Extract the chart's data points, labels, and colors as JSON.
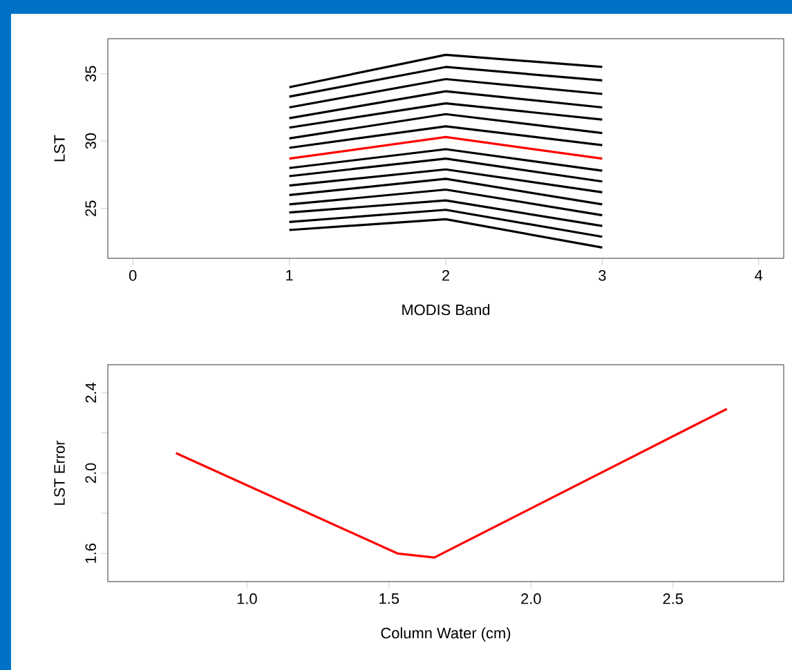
{
  "chart_data": [
    {
      "type": "line",
      "xlabel": "MODIS Band",
      "ylabel": "LST",
      "x": [
        1,
        2,
        3
      ],
      "xlim": [
        -0.16,
        4.16
      ],
      "ylim": [
        21.3,
        37.6
      ],
      "xticks": [
        0,
        1,
        2,
        3,
        4
      ],
      "yticks": [
        25,
        30,
        35
      ],
      "marker": "none",
      "line_style": "solid",
      "series": [
        {
          "color": "#000000",
          "values": [
            34.0,
            36.4,
            35.5
          ]
        },
        {
          "color": "#000000",
          "values": [
            33.3,
            35.5,
            34.5
          ]
        },
        {
          "color": "#000000",
          "values": [
            32.5,
            34.6,
            33.5
          ]
        },
        {
          "color": "#000000",
          "values": [
            31.7,
            33.7,
            32.5
          ]
        },
        {
          "color": "#000000",
          "values": [
            31.0,
            32.8,
            31.6
          ]
        },
        {
          "color": "#000000",
          "values": [
            30.2,
            32.0,
            30.6
          ]
        },
        {
          "color": "#000000",
          "values": [
            29.5,
            31.1,
            29.7
          ]
        },
        {
          "color": "#ff0000",
          "values": [
            28.7,
            30.3,
            28.7
          ]
        },
        {
          "color": "#000000",
          "values": [
            28.0,
            29.4,
            27.8
          ]
        },
        {
          "color": "#000000",
          "values": [
            27.4,
            28.7,
            27.0
          ]
        },
        {
          "color": "#000000",
          "values": [
            26.7,
            27.9,
            26.2
          ]
        },
        {
          "color": "#000000",
          "values": [
            26.0,
            27.2,
            25.3
          ]
        },
        {
          "color": "#000000",
          "values": [
            25.3,
            26.4,
            24.5
          ]
        },
        {
          "color": "#000000",
          "values": [
            24.7,
            25.6,
            23.7
          ]
        },
        {
          "color": "#000000",
          "values": [
            24.0,
            24.9,
            22.9
          ]
        },
        {
          "color": "#000000",
          "values": [
            23.4,
            24.2,
            22.1
          ]
        }
      ]
    },
    {
      "type": "line",
      "xlabel": "Column Water (cm)",
      "ylabel": "LST Error",
      "x": [
        0.75,
        1.53,
        1.66,
        2.69
      ],
      "xlim": [
        0.51,
        2.89
      ],
      "ylim": [
        1.46,
        2.54
      ],
      "xticks": [
        {
          "value": 1.0,
          "label": "1.0"
        },
        {
          "value": 1.5,
          "label": "1.5"
        },
        {
          "value": 2.0,
          "label": "2.0"
        },
        {
          "value": 2.5,
          "label": "2.5"
        }
      ],
      "yticks": [
        {
          "value": 1.6,
          "label": "1.6"
        },
        {
          "value": 1.8,
          "label": null
        },
        {
          "value": 2.0,
          "label": "2.0"
        },
        {
          "value": 2.2,
          "label": null
        },
        {
          "value": 2.4,
          "label": "2.4"
        }
      ],
      "marker": "none",
      "line_style": "solid",
      "series": [
        {
          "color": "#ff0000",
          "values": [
            2.1,
            1.6,
            1.58,
            2.32
          ]
        }
      ]
    }
  ]
}
